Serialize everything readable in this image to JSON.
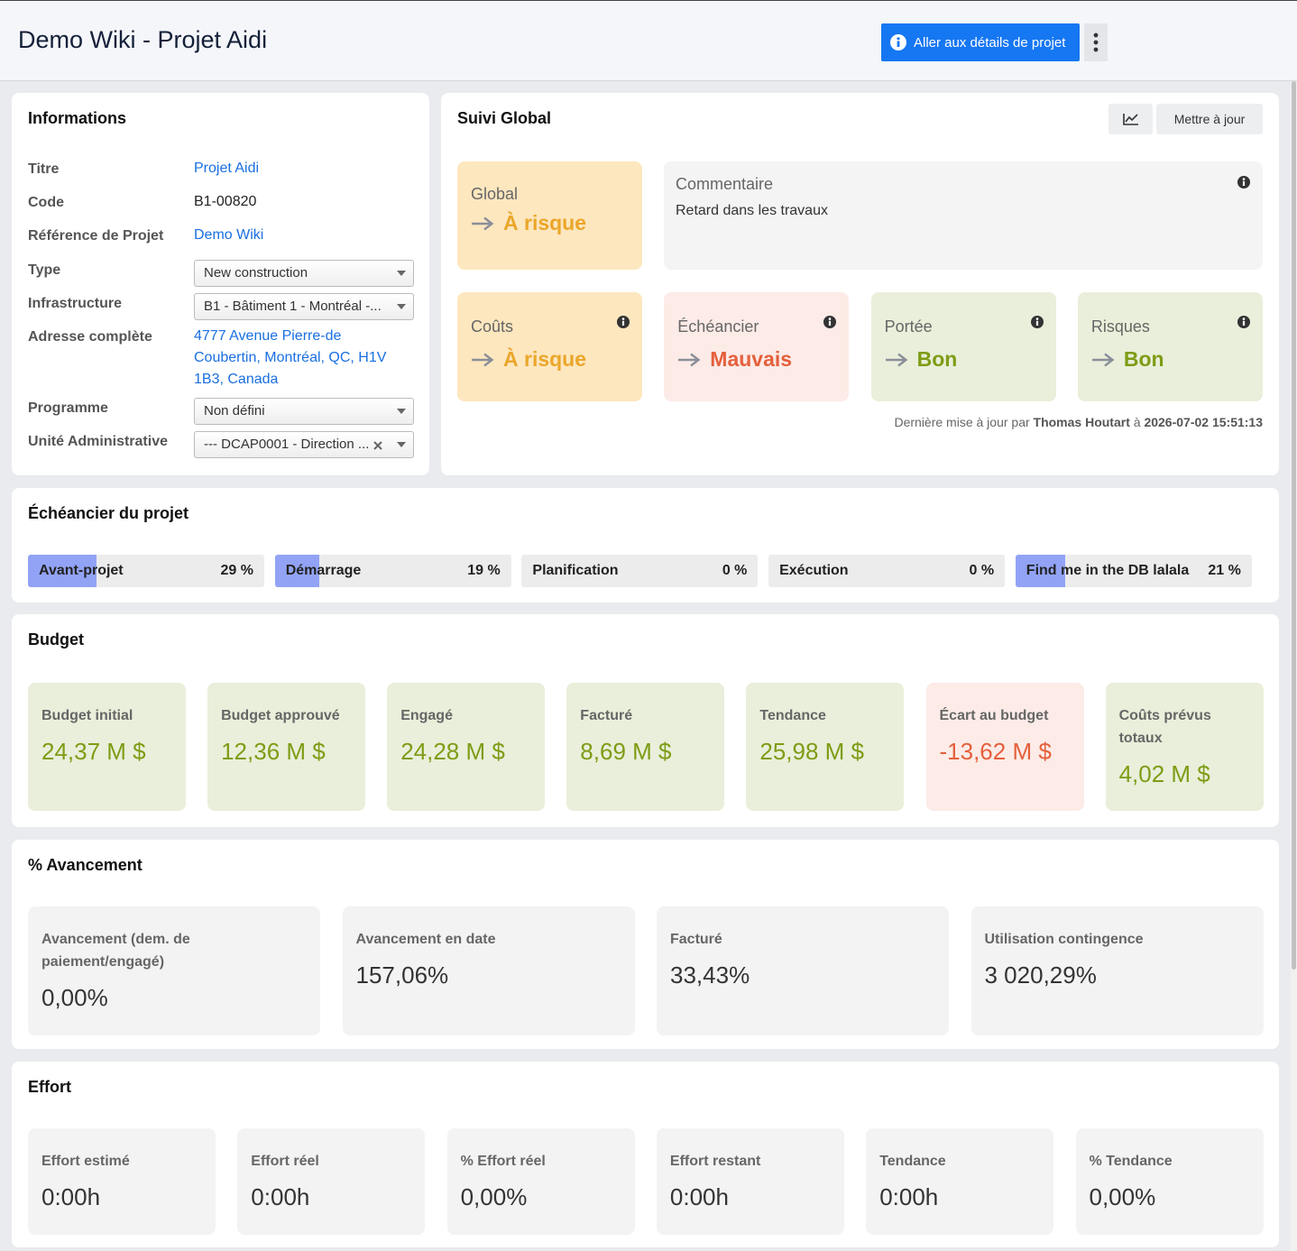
{
  "header": {
    "title": "Demo Wiki - Projet Aidi",
    "button": "Aller aux détails de projet"
  },
  "informations": {
    "title": "Informations",
    "rows": [
      {
        "label": "Titre",
        "value": "Projet Aidi"
      },
      {
        "label": "Code",
        "value": "B1-00820"
      },
      {
        "label": "Référence de Projet",
        "value": "Demo Wiki"
      },
      {
        "label": "Type",
        "value": "New construction"
      },
      {
        "label": "Infrastructure",
        "value": "B1 - Bâtiment 1 - Montréal -..."
      },
      {
        "label": "Adresse complète",
        "value": "4777 Avenue Pierre-de Coubertin, Montréal, QC, H1V 1B3, Canada"
      },
      {
        "label": "Programme",
        "value": "Non défini"
      },
      {
        "label": "Unité Administrative",
        "value": "--- DCAP0001 - Direction ..."
      }
    ]
  },
  "suivi": {
    "title": "Suivi Global",
    "update_button": "Mettre à jour",
    "global": {
      "label": "Global",
      "status": "À risque"
    },
    "comment": {
      "label": "Commentaire",
      "text": "Retard dans les travaux"
    },
    "indicators": [
      {
        "label": "Coûts",
        "status": "À risque"
      },
      {
        "label": "Échéancier",
        "status": "Mauvais"
      },
      {
        "label": "Portée",
        "status": "Bon"
      },
      {
        "label": "Risques",
        "status": "Bon"
      }
    ],
    "last_update": {
      "prefix": "Dernière mise à jour par",
      "user": "Thomas Houtart",
      "sep": "à",
      "date": "2026-07-02 15:51:13"
    }
  },
  "schedule": {
    "title": "Échéancier du projet",
    "phases": [
      {
        "name": "Avant-projet",
        "value": 29,
        "label": "29 %"
      },
      {
        "name": "Démarrage",
        "value": 19,
        "label": "19 %"
      },
      {
        "name": "Planification",
        "value": 0,
        "label": "0 %"
      },
      {
        "name": "Exécution",
        "value": 0,
        "label": "0 %"
      },
      {
        "name": "Find me in the DB lalala",
        "value": 21,
        "label": "21 %"
      }
    ]
  },
  "budget": {
    "title": "Budget",
    "items": [
      {
        "label": "Budget initial",
        "value": "24,37 M $"
      },
      {
        "label": "Budget approuvé",
        "value": "12,36 M $"
      },
      {
        "label": "Engagé",
        "value": "24,28 M $"
      },
      {
        "label": "Facturé",
        "value": "8,69 M $"
      },
      {
        "label": "Tendance",
        "value": "25,98 M $"
      },
      {
        "label": "Écart au budget",
        "value": "-13,62 M $"
      },
      {
        "label": "Coûts prévus totaux",
        "value": "4,02 M $"
      }
    ]
  },
  "avancement": {
    "title": "% Avancement",
    "items": [
      {
        "label": "Avancement (dem. de paiement/engagé)",
        "value": "0,00%"
      },
      {
        "label": "Avancement en date",
        "value": "157,06%"
      },
      {
        "label": "Facturé",
        "value": "33,43%"
      },
      {
        "label": "Utilisation contingence",
        "value": "3 020,29%"
      }
    ]
  },
  "effort": {
    "title": "Effort",
    "items": [
      {
        "label": "Effort estimé",
        "value": "0:00h"
      },
      {
        "label": "Effort réel",
        "value": "0:00h"
      },
      {
        "label": "% Effort réel",
        "value": "0,00%"
      },
      {
        "label": "Effort restant",
        "value": "0:00h"
      },
      {
        "label": "Tendance",
        "value": "0:00h"
      },
      {
        "label": "% Tendance",
        "value": "0,00%"
      }
    ]
  }
}
